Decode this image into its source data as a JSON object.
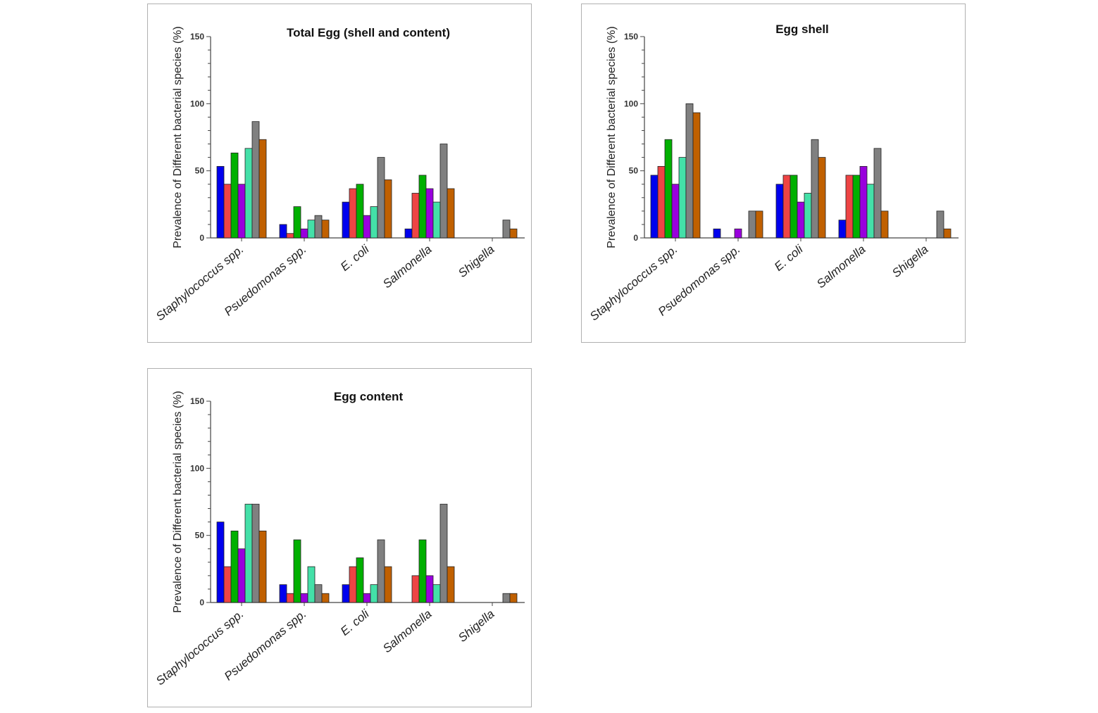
{
  "chart_data": [
    {
      "type": "bar",
      "title": "Total Egg (shell and content)",
      "ylabel": "Prevalence of Different bacterial species (%)",
      "xlabel": "",
      "ylim": [
        0,
        150
      ],
      "yticks": [
        "0",
        "50",
        "100",
        "150"
      ],
      "categories": [
        "Staphylococcus spp.",
        "Psuedomonas spp.",
        "E. coli",
        "Salmonella",
        "Shigella"
      ],
      "series": [
        {
          "color": "#0000ee",
          "values": [
            53.3,
            10,
            26.7,
            6.7,
            0
          ]
        },
        {
          "color": "#ee4444",
          "values": [
            40,
            3.3,
            36.7,
            33.3,
            0
          ]
        },
        {
          "color": "#00b000",
          "values": [
            63.3,
            23.3,
            40,
            46.7,
            0
          ]
        },
        {
          "color": "#9900dd",
          "values": [
            40,
            6.7,
            16.7,
            36.7,
            0
          ]
        },
        {
          "color": "#44e0a8",
          "values": [
            66.7,
            13.3,
            23.3,
            26.7,
            0
          ]
        },
        {
          "color": "#808080",
          "values": [
            86.7,
            16.7,
            60,
            70,
            13.3
          ]
        },
        {
          "color": "#c06000",
          "values": [
            73.3,
            13.3,
            43.3,
            36.7,
            6.7
          ]
        }
      ],
      "grid": false
    },
    {
      "type": "bar",
      "title": "Egg shell",
      "ylabel": "Prevalence of Different bacterial species (%)",
      "xlabel": "",
      "ylim": [
        0,
        150
      ],
      "yticks": [
        "0",
        "50",
        "100",
        "150"
      ],
      "categories": [
        "Staphylococcus spp.",
        "Psuedomonas spp.",
        "E. coli",
        "Salmonella",
        "Shigella"
      ],
      "series": [
        {
          "color": "#0000ee",
          "values": [
            46.7,
            6.7,
            40,
            13.3,
            0
          ]
        },
        {
          "color": "#ee4444",
          "values": [
            53.3,
            0,
            46.7,
            46.7,
            0
          ]
        },
        {
          "color": "#00b000",
          "values": [
            73.3,
            0,
            46.7,
            46.7,
            0
          ]
        },
        {
          "color": "#9900dd",
          "values": [
            40,
            6.7,
            26.7,
            53.3,
            0
          ]
        },
        {
          "color": "#44e0a8",
          "values": [
            60,
            0,
            33.3,
            40,
            0
          ]
        },
        {
          "color": "#808080",
          "values": [
            100,
            20,
            73.3,
            66.7,
            20
          ]
        },
        {
          "color": "#c06000",
          "values": [
            93.3,
            20,
            60,
            20,
            6.7
          ]
        }
      ],
      "grid": false
    },
    {
      "type": "bar",
      "title": "Egg content",
      "ylabel": "Prevalence of Different bacterial species (%)",
      "xlabel": "",
      "ylim": [
        0,
        150
      ],
      "yticks": [
        "0",
        "50",
        "100",
        "150"
      ],
      "categories": [
        "Staphylococcus spp.",
        "Psuedomonas spp.",
        "E. coli",
        "Salmonella",
        "Shigella"
      ],
      "series": [
        {
          "color": "#0000ee",
          "values": [
            60,
            13.3,
            13.3,
            0,
            0
          ]
        },
        {
          "color": "#ee4444",
          "values": [
            26.7,
            6.7,
            26.7,
            20,
            0
          ]
        },
        {
          "color": "#00b000",
          "values": [
            53.3,
            46.7,
            33.3,
            46.7,
            0
          ]
        },
        {
          "color": "#9900dd",
          "values": [
            40,
            6.7,
            6.7,
            20,
            0
          ]
        },
        {
          "color": "#44e0a8",
          "values": [
            73.3,
            26.7,
            13.3,
            13.3,
            0
          ]
        },
        {
          "color": "#808080",
          "values": [
            73.3,
            13.3,
            46.7,
            73.3,
            6.7
          ]
        },
        {
          "color": "#c06000",
          "values": [
            53.3,
            6.7,
            26.7,
            26.7,
            6.7
          ]
        }
      ],
      "grid": false
    }
  ]
}
